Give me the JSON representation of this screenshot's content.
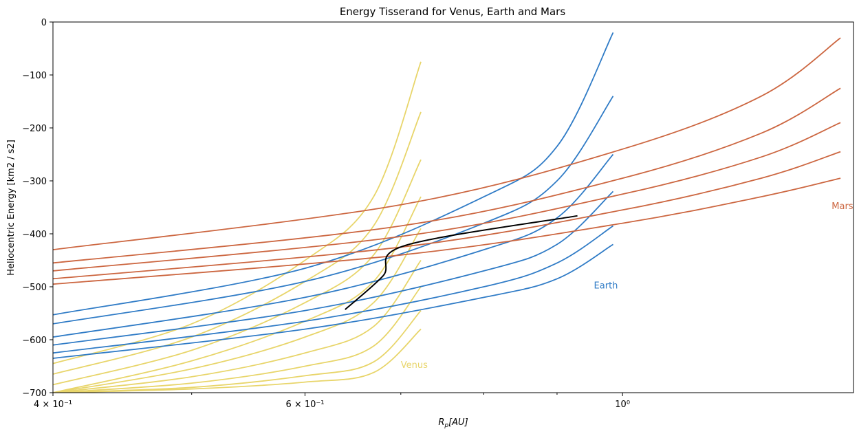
{
  "chart_data": {
    "type": "line",
    "title": "Energy Tisserand for Venus, Earth and Mars",
    "xlabel": "R_p[AU]",
    "ylabel": "Heliocentric Energy [km2 / s2]",
    "xscale": "log",
    "xlim": [
      0.4,
      1.45
    ],
    "ylim": [
      -700,
      0
    ],
    "grid": false,
    "legend": "none",
    "x_ticks_major": [
      {
        "value": 0.4,
        "label": "4 × 10⁻¹"
      },
      {
        "value": 0.6,
        "label": "6 × 10⁻¹"
      },
      {
        "value": 1.0,
        "label": "10⁰"
      }
    ],
    "x_ticks_minor": [
      0.5,
      0.7,
      0.8,
      0.9
    ],
    "y_ticks": [
      {
        "value": 0,
        "label": "0"
      },
      {
        "value": -100,
        "label": "−100"
      },
      {
        "value": -200,
        "label": "−200"
      },
      {
        "value": -300,
        "label": "−300"
      },
      {
        "value": -400,
        "label": "−400"
      },
      {
        "value": -500,
        "label": "−500"
      },
      {
        "value": -600,
        "label": "−600"
      },
      {
        "value": -700,
        "label": "−700"
      }
    ],
    "series": [
      {
        "name": "Venus",
        "color": "#e8d56a",
        "label_text": "Venus",
        "label_at": [
          0.7,
          -648
        ],
        "curves": [
          {
            "x": [
              0.4,
              0.5,
              0.6,
              0.67,
              0.723
            ],
            "y": [
              -700,
              -693,
              -680,
              -662,
              -580
            ]
          },
          {
            "x": [
              0.4,
              0.5,
              0.6,
              0.67,
              0.723
            ],
            "y": [
              -700,
              -690,
              -668,
              -642,
              -545
            ]
          },
          {
            "x": [
              0.4,
              0.5,
              0.6,
              0.67,
              0.723
            ],
            "y": [
              -700,
              -682,
              -650,
              -612,
              -500
            ]
          },
          {
            "x": [
              0.4,
              0.5,
              0.6,
              0.67,
              0.723
            ],
            "y": [
              -700,
              -670,
              -625,
              -575,
              -450
            ]
          },
          {
            "x": [
              0.4,
              0.5,
              0.6,
              0.67,
              0.723
            ],
            "y": [
              -700,
              -655,
              -595,
              -530,
              -390
            ]
          },
          {
            "x": [
              0.4,
              0.5,
              0.6,
              0.67,
              0.723
            ],
            "y": [
              -700,
              -640,
              -565,
              -490,
              -330
            ]
          },
          {
            "x": [
              0.4,
              0.5,
              0.6,
              0.67,
              0.723
            ],
            "y": [
              -685,
              -620,
              -530,
              -440,
              -260
            ]
          },
          {
            "x": [
              0.4,
              0.5,
              0.6,
              0.67,
              0.723
            ],
            "y": [
              -665,
              -595,
              -490,
              -385,
              -170
            ]
          },
          {
            "x": [
              0.4,
              0.5,
              0.6,
              0.67,
              0.723
            ],
            "y": [
              -645,
              -570,
              -450,
              -330,
              -75
            ]
          }
        ]
      },
      {
        "name": "Earth",
        "color": "#2f7bc6",
        "label_text": "Earth",
        "label_at": [
          0.955,
          -498
        ],
        "curves": [
          {
            "x": [
              0.4,
              0.6,
              0.8,
              0.9,
              0.985
            ],
            "y": [
              -635,
              -580,
              -520,
              -485,
              -420
            ]
          },
          {
            "x": [
              0.4,
              0.6,
              0.8,
              0.9,
              0.985
            ],
            "y": [
              -625,
              -565,
              -500,
              -455,
              -385
            ]
          },
          {
            "x": [
              0.4,
              0.6,
              0.8,
              0.9,
              0.985
            ],
            "y": [
              -610,
              -545,
              -470,
              -420,
              -320
            ]
          },
          {
            "x": [
              0.4,
              0.6,
              0.8,
              0.9,
              0.985
            ],
            "y": [
              -595,
              -520,
              -430,
              -370,
              -250
            ]
          },
          {
            "x": [
              0.4,
              0.6,
              0.8,
              0.9,
              0.985
            ],
            "y": [
              -570,
              -490,
              -380,
              -300,
              -140
            ]
          },
          {
            "x": [
              0.4,
              0.6,
              0.8,
              0.9,
              0.985
            ],
            "y": [
              -553,
              -465,
              -330,
              -235,
              -20
            ]
          }
        ]
      },
      {
        "name": "Mars",
        "color": "#cc6640",
        "label_text": "Mars",
        "label_at": [
          1.4,
          -348
        ],
        "curves": [
          {
            "x": [
              0.4,
              0.7,
              1.0,
              1.25,
              1.42
            ],
            "y": [
              -495,
              -440,
              -380,
              -330,
              -295
            ]
          },
          {
            "x": [
              0.4,
              0.7,
              1.0,
              1.25,
              1.42
            ],
            "y": [
              -485,
              -425,
              -355,
              -295,
              -245
            ]
          },
          {
            "x": [
              0.4,
              0.7,
              1.0,
              1.25,
              1.42
            ],
            "y": [
              -470,
              -405,
              -325,
              -255,
              -190
            ]
          },
          {
            "x": [
              0.4,
              0.7,
              1.0,
              1.25,
              1.42
            ],
            "y": [
              -455,
              -385,
              -295,
              -210,
              -125
            ]
          },
          {
            "x": [
              0.4,
              0.7,
              1.0,
              1.25,
              1.42
            ],
            "y": [
              -430,
              -345,
              -240,
              -140,
              -30
            ]
          }
        ]
      },
      {
        "name": "",
        "color": "#000000",
        "label_text": "",
        "curves": [
          {
            "x": [
              0.64,
              0.68,
              0.705,
              0.93
            ],
            "y": [
              -543,
              -480,
              -422,
              -366
            ]
          }
        ]
      }
    ]
  }
}
